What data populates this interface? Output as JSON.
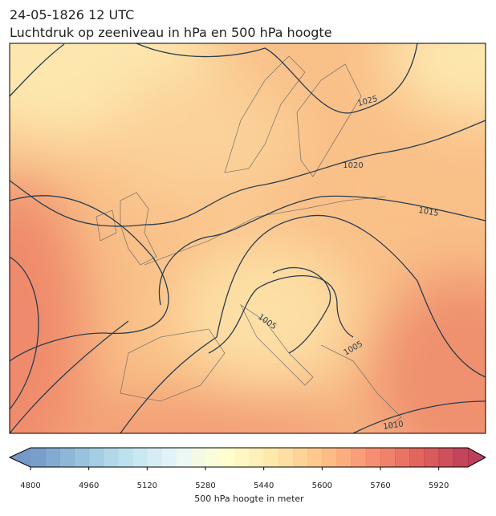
{
  "title": [
    "24-05-1826 12 UTC",
    "Luchtdruk op zeeniveau in hPa en 500 hPa hoogte"
  ],
  "isobar_labels": [
    1025,
    1020,
    1015,
    1010,
    1005,
    1005
  ],
  "colorbar": {
    "lim": [
      4800,
      6000
    ],
    "ticks": [
      4800,
      4960,
      5120,
      5280,
      5440,
      5600,
      5760,
      5920
    ],
    "label": "500 hPa hoogte in meter"
  }
}
